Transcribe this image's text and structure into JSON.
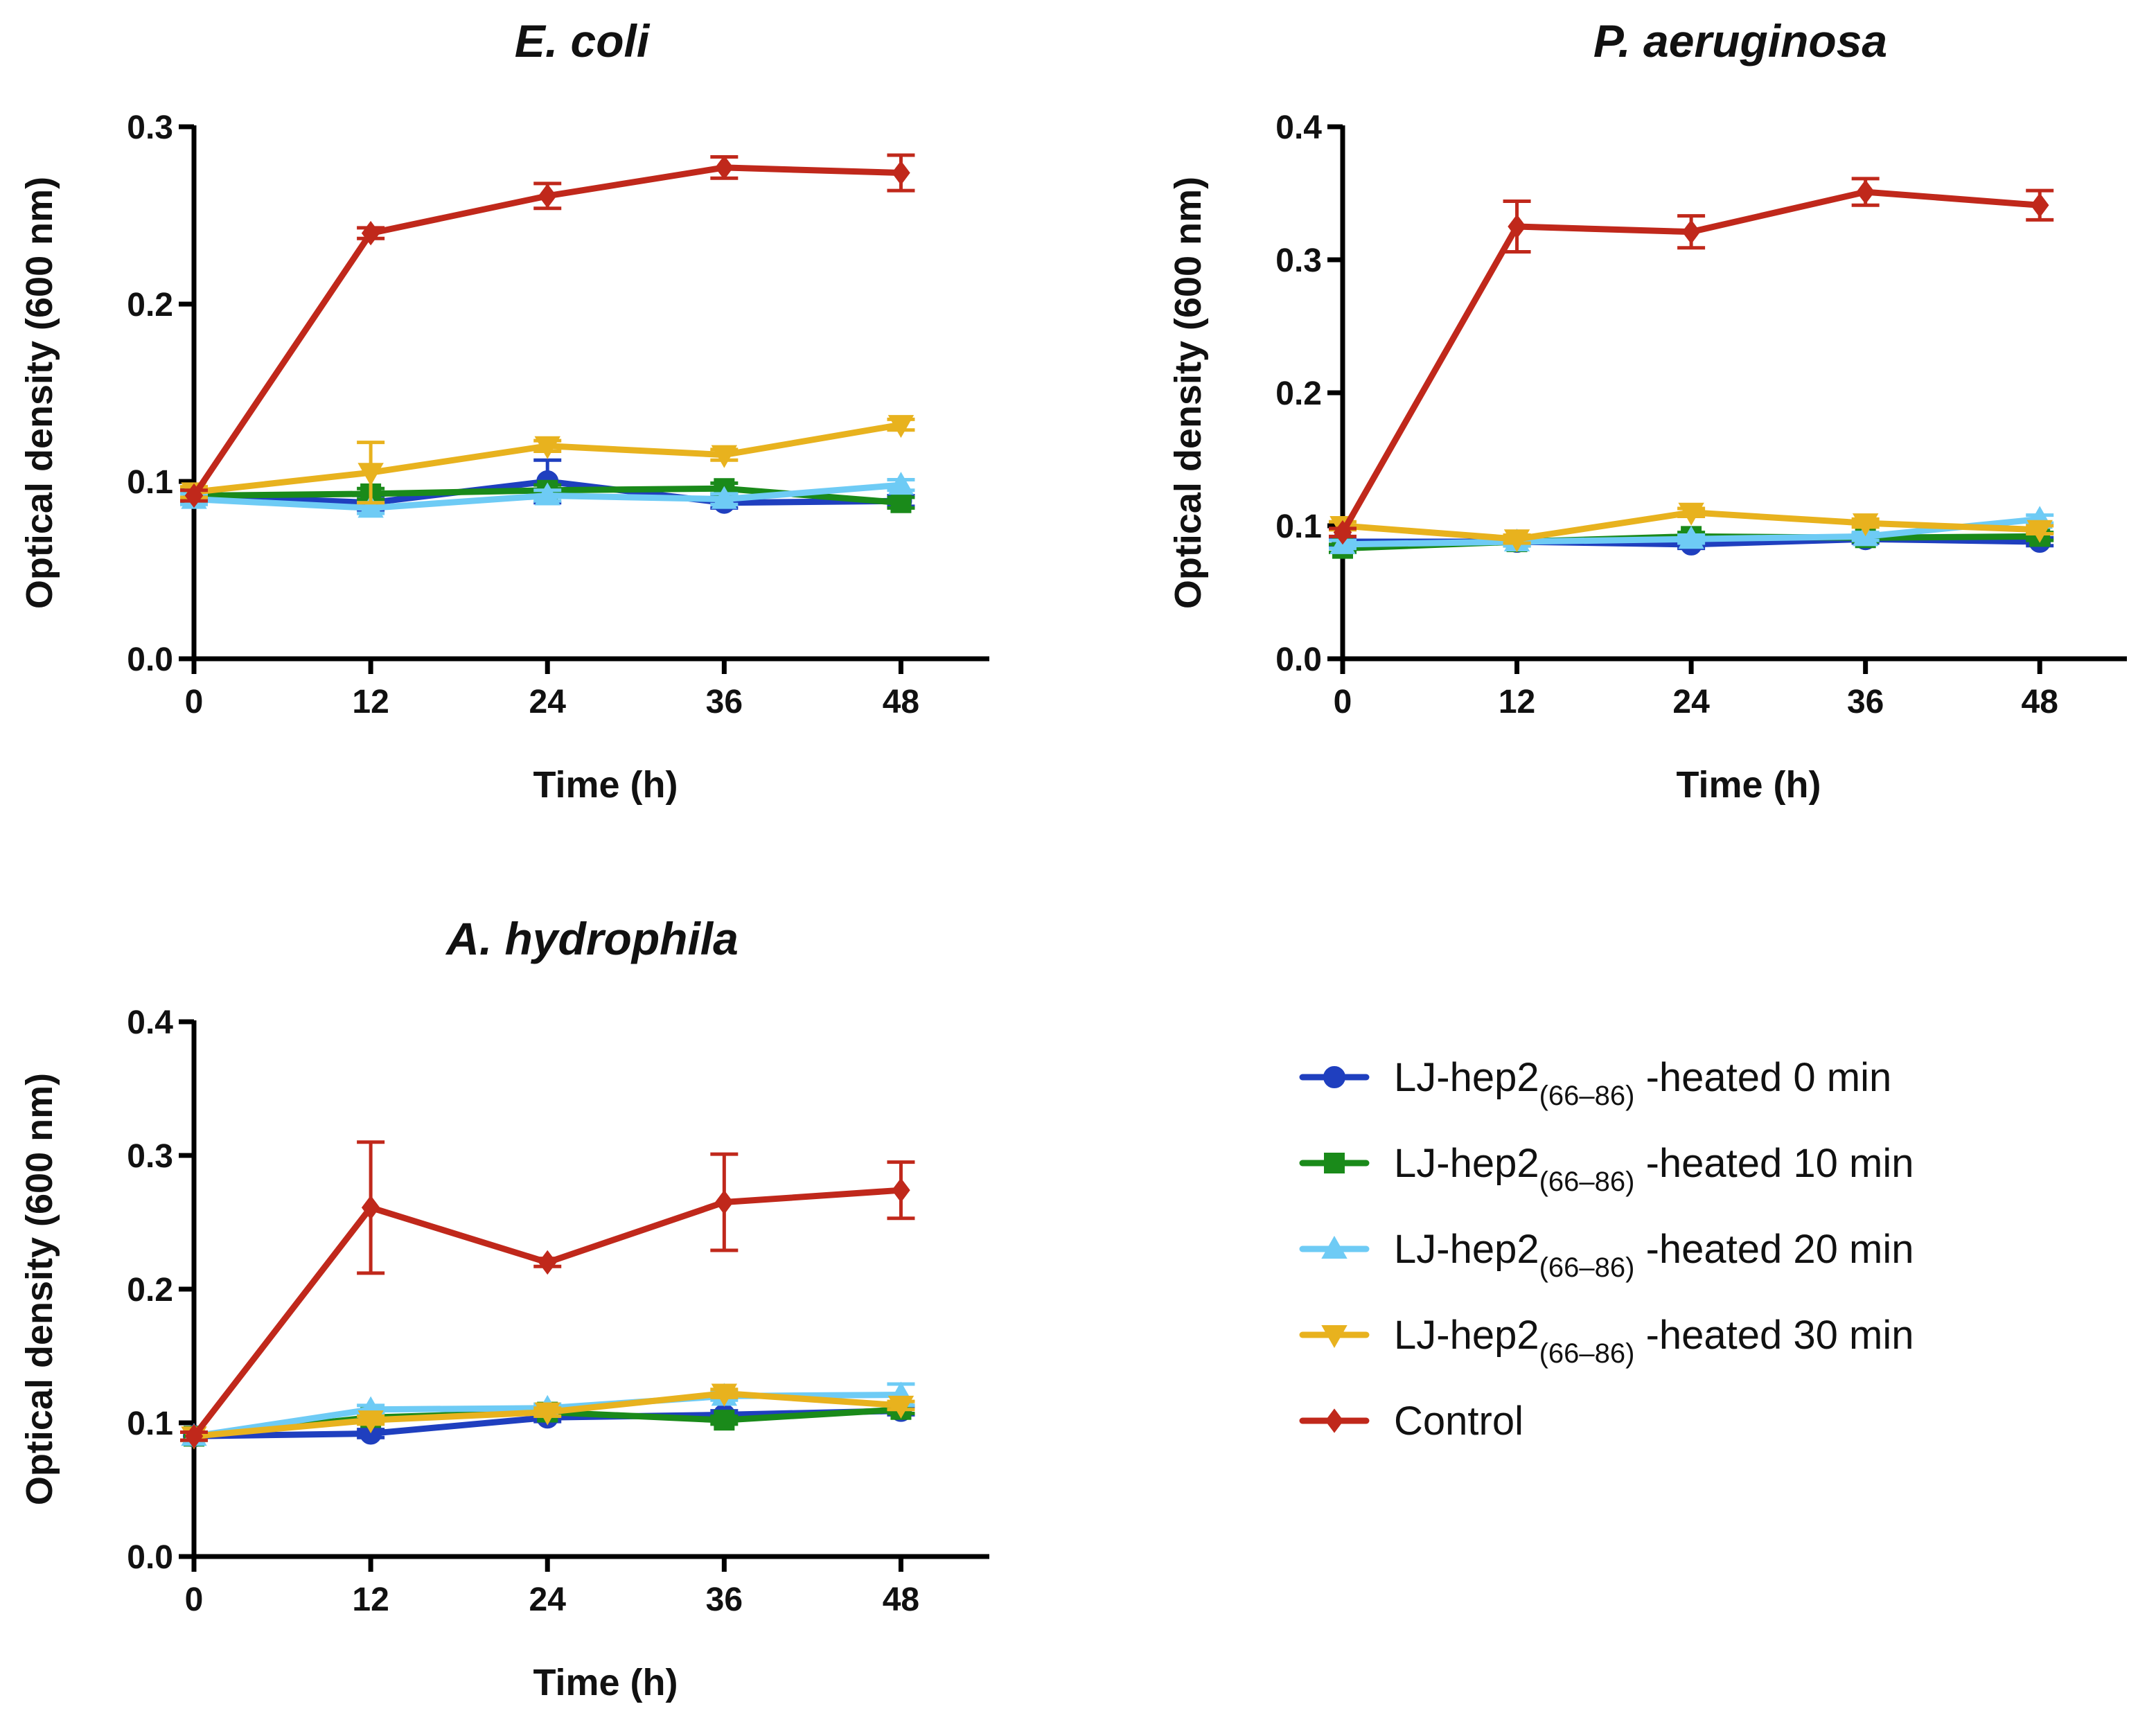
{
  "chart_data": [
    {
      "type": "line",
      "title": "E. coli",
      "xlabel": "Time (h)",
      "ylabel": "Optical density (600 nm)",
      "x": [
        0,
        12,
        24,
        36,
        48
      ],
      "xticks": [
        "0",
        "12",
        "24",
        "36",
        "48"
      ],
      "xlim": [
        0,
        54
      ],
      "ylim": [
        0,
        0.3
      ],
      "yticks": [
        "0.0",
        "0.1",
        "0.2",
        "0.3"
      ],
      "series": [
        {
          "name": "heated 0 min",
          "color": "#1f3fbf",
          "marker": "circle",
          "values": [
            0.092,
            0.088,
            0.1,
            0.088,
            0.089
          ],
          "errors": [
            0.004,
            0.004,
            0.012,
            0.003,
            0.003
          ]
        },
        {
          "name": "heated 10 min",
          "color": "#1a8a1a",
          "marker": "square",
          "values": [
            0.092,
            0.093,
            0.095,
            0.096,
            0.088
          ],
          "errors": [
            0.003,
            0.003,
            0.003,
            0.003,
            0.003
          ]
        },
        {
          "name": "heated 20 min",
          "color": "#6ecbf5",
          "marker": "triangle-up",
          "values": [
            0.09,
            0.085,
            0.092,
            0.09,
            0.098
          ],
          "errors": [
            0.003,
            0.003,
            0.003,
            0.003,
            0.003
          ]
        },
        {
          "name": "heated 30 min",
          "color": "#e8b21e",
          "marker": "triangle-down",
          "values": [
            0.094,
            0.105,
            0.12,
            0.115,
            0.132
          ],
          "errors": [
            0.003,
            0.017,
            0.003,
            0.003,
            0.003
          ]
        },
        {
          "name": "Control",
          "color": "#c0281b",
          "marker": "diamond",
          "values": [
            0.092,
            0.24,
            0.261,
            0.277,
            0.274
          ],
          "errors": [
            0.003,
            0.003,
            0.007,
            0.006,
            0.01
          ]
        }
      ]
    },
    {
      "type": "line",
      "title": "P. aeruginosa",
      "xlabel": "Time (h)",
      "ylabel": "Optical density (600 nm)",
      "x": [
        0,
        12,
        24,
        36,
        48
      ],
      "xticks": [
        "0",
        "12",
        "24",
        "36",
        "48"
      ],
      "xlim": [
        0,
        54
      ],
      "ylim": [
        0,
        0.4
      ],
      "yticks": [
        "0.0",
        "0.1",
        "0.2",
        "0.3",
        "0.4"
      ],
      "series": [
        {
          "name": "heated 0 min",
          "color": "#1f3fbf",
          "marker": "circle",
          "values": [
            0.088,
            0.088,
            0.086,
            0.09,
            0.088
          ],
          "errors": [
            0.003,
            0.003,
            0.003,
            0.003,
            0.003
          ]
        },
        {
          "name": "heated 10 min",
          "color": "#1a8a1a",
          "marker": "square",
          "values": [
            0.083,
            0.088,
            0.092,
            0.091,
            0.092
          ],
          "errors": [
            0.003,
            0.003,
            0.003,
            0.003,
            0.003
          ]
        },
        {
          "name": "heated 20 min",
          "color": "#6ecbf5",
          "marker": "triangle-up",
          "values": [
            0.086,
            0.088,
            0.09,
            0.092,
            0.105
          ],
          "errors": [
            0.003,
            0.003,
            0.003,
            0.003,
            0.003
          ]
        },
        {
          "name": "heated 30 min",
          "color": "#e8b21e",
          "marker": "triangle-down",
          "values": [
            0.1,
            0.09,
            0.11,
            0.102,
            0.097
          ],
          "errors": [
            0.003,
            0.003,
            0.003,
            0.003,
            0.003
          ]
        },
        {
          "name": "Control",
          "color": "#c0281b",
          "marker": "diamond",
          "values": [
            0.095,
            0.325,
            0.321,
            0.351,
            0.341
          ],
          "errors": [
            0.003,
            0.019,
            0.012,
            0.01,
            0.011
          ]
        }
      ]
    },
    {
      "type": "line",
      "title": "A. hydrophila",
      "xlabel": "Time (h)",
      "ylabel": "Optical density (600 nm)",
      "x": [
        0,
        12,
        24,
        36,
        48
      ],
      "xticks": [
        "0",
        "12",
        "24",
        "36",
        "48"
      ],
      "xlim": [
        0,
        54
      ],
      "ylim": [
        0,
        0.4
      ],
      "yticks": [
        "0.0",
        "0.1",
        "0.2",
        "0.3",
        "0.4"
      ],
      "series": [
        {
          "name": "heated 0 min",
          "color": "#1f3fbf",
          "marker": "circle",
          "values": [
            0.09,
            0.092,
            0.104,
            0.106,
            0.109
          ],
          "errors": [
            0.003,
            0.003,
            0.003,
            0.003,
            0.003
          ]
        },
        {
          "name": "heated 10 min",
          "color": "#1a8a1a",
          "marker": "square",
          "values": [
            0.09,
            0.104,
            0.108,
            0.102,
            0.11
          ],
          "errors": [
            0.003,
            0.003,
            0.003,
            0.003,
            0.003
          ]
        },
        {
          "name": "heated 20 min",
          "color": "#6ecbf5",
          "marker": "triangle-up",
          "values": [
            0.09,
            0.11,
            0.111,
            0.12,
            0.121
          ],
          "errors": [
            0.003,
            0.003,
            0.003,
            0.003,
            0.008
          ]
        },
        {
          "name": "heated 30 min",
          "color": "#e8b21e",
          "marker": "triangle-down",
          "values": [
            0.09,
            0.102,
            0.108,
            0.122,
            0.113
          ],
          "errors": [
            0.003,
            0.003,
            0.003,
            0.003,
            0.003
          ]
        },
        {
          "name": "Control",
          "color": "#c0281b",
          "marker": "diamond",
          "values": [
            0.09,
            0.261,
            0.22,
            0.265,
            0.274
          ],
          "errors": [
            0.003,
            0.049,
            0.003,
            0.036,
            0.021
          ]
        }
      ]
    }
  ],
  "legend": {
    "position": "bottom-right",
    "entries": [
      {
        "series": "heated 0 min",
        "prefix": "LJ-hep2",
        "subscript": "(66–86)",
        "suffix": " -heated 0 min",
        "color": "#1f3fbf",
        "marker": "circle"
      },
      {
        "series": "heated 10 min",
        "prefix": "LJ-hep2",
        "subscript": "(66–86)",
        "suffix": " -heated 10 min",
        "color": "#1a8a1a",
        "marker": "square"
      },
      {
        "series": "heated 20 min",
        "prefix": "LJ-hep2",
        "subscript": "(66–86)",
        "suffix": " -heated 20 min",
        "color": "#6ecbf5",
        "marker": "triangle-up"
      },
      {
        "series": "heated 30 min",
        "prefix": "LJ-hep2",
        "subscript": "(66–86)",
        "suffix": " -heated 30 min",
        "color": "#e8b21e",
        "marker": "triangle-down"
      },
      {
        "series": "Control",
        "prefix": "Control",
        "subscript": "",
        "suffix": "",
        "color": "#c0281b",
        "marker": "diamond"
      }
    ]
  }
}
